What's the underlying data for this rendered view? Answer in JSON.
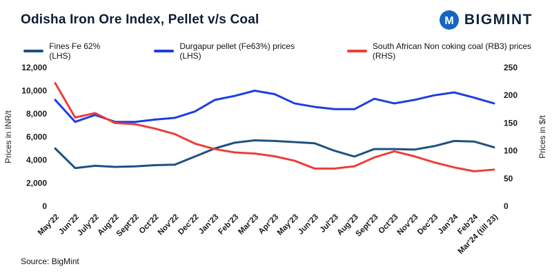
{
  "header": {
    "title": "Odisha Iron Ore Index, Pellet v/s Coal",
    "brand": "BIGMINT",
    "brand_icon": "bigmint-circle-m",
    "brand_icon_color": "#1565c0",
    "brand_text_color": "#0d2240"
  },
  "axes": {
    "left_label": "Prices in INR/t",
    "right_label": "Prices in $/t"
  },
  "source": "Source: BigMint",
  "chart_data": {
    "type": "line",
    "title": "Odisha Iron Ore Index, Pellet v/s Coal",
    "grid": false,
    "legend_position": "top",
    "categories": [
      "May'22",
      "Jun'22",
      "July'22",
      "Aug'22",
      "Sept'22",
      "Oct'22",
      "Nov'22",
      "Dec'22",
      "Jan'23",
      "Feb'23",
      "Mar'23",
      "Apr'23",
      "May'23",
      "Jun'23",
      "Jul'23",
      "Aug'23",
      "Sept'23",
      "Oct'23",
      "Nov'23",
      "Dec'23",
      "Jan'24",
      "Feb'24",
      "Mar'24 (till 23)"
    ],
    "left_axis": {
      "label": "Prices in INR/t",
      "min": 0,
      "max": 12000,
      "step": 2000
    },
    "right_axis": {
      "label": "Prices in $/t",
      "min": 0,
      "max": 250,
      "step": 50
    },
    "series": [
      {
        "name": "Fines Fe 62% (LHS)",
        "axis": "left",
        "color": "#1f5080",
        "values": [
          5000,
          3300,
          3500,
          3400,
          3450,
          3550,
          3600,
          4300,
          5000,
          5500,
          5700,
          5650,
          5550,
          5450,
          4800,
          4300,
          4950,
          4950,
          4900,
          5200,
          5650,
          5600,
          5100
        ]
      },
      {
        "name": "Durgapur pellet (Fe63%) prices (LHS)",
        "axis": "left",
        "color": "#1d3de2",
        "values": [
          9200,
          7300,
          7900,
          7300,
          7300,
          7500,
          7650,
          8200,
          9200,
          9550,
          10000,
          9700,
          8900,
          8600,
          8400,
          8400,
          9300,
          8900,
          9200,
          9600,
          9850,
          9400,
          8900
        ]
      },
      {
        "name": "South African Non coking coal (RB3) prices (RHS)",
        "axis": "right",
        "color": "#ee3d38",
        "values": [
          222,
          160,
          168,
          150,
          148,
          140,
          130,
          113,
          103,
          97,
          95,
          90,
          82,
          68,
          68,
          72,
          88,
          99,
          90,
          79,
          70,
          63,
          66
        ]
      }
    ]
  }
}
